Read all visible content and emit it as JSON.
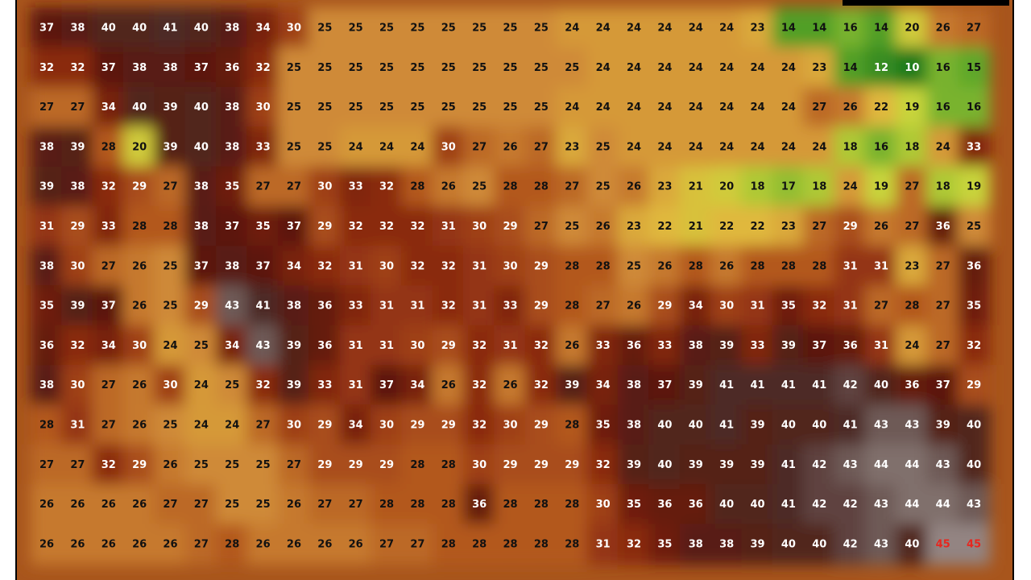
{
  "map": {
    "rows": [
      [
        37,
        38,
        40,
        40,
        41,
        40,
        38,
        34,
        30,
        25,
        25,
        25,
        25,
        25,
        25,
        25,
        25,
        24,
        24,
        24,
        24,
        24,
        24,
        23,
        14,
        14,
        16,
        14,
        20,
        26,
        27
      ],
      [
        32,
        32,
        37,
        38,
        38,
        37,
        36,
        32,
        25,
        25,
        25,
        25,
        25,
        25,
        25,
        25,
        25,
        25,
        24,
        24,
        24,
        24,
        24,
        24,
        24,
        23,
        14,
        12,
        10,
        16,
        15
      ],
      [
        27,
        27,
        34,
        40,
        39,
        40,
        38,
        30,
        25,
        25,
        25,
        25,
        25,
        25,
        25,
        25,
        25,
        24,
        24,
        24,
        24,
        24,
        24,
        24,
        24,
        27,
        26,
        22,
        19,
        16,
        16
      ],
      [
        38,
        39,
        28,
        20,
        39,
        40,
        38,
        33,
        25,
        25,
        24,
        24,
        24,
        30,
        27,
        26,
        27,
        23,
        25,
        24,
        24,
        24,
        24,
        24,
        24,
        24,
        18,
        16,
        18,
        24,
        33
      ],
      [
        39,
        38,
        32,
        29,
        27,
        38,
        35,
        27,
        27,
        30,
        33,
        32,
        28,
        26,
        25,
        28,
        28,
        27,
        25,
        26,
        23,
        21,
        20,
        18,
        17,
        18,
        24,
        19,
        27,
        18,
        19
      ],
      [
        31,
        29,
        33,
        28,
        28,
        38,
        37,
        35,
        37,
        29,
        32,
        32,
        32,
        31,
        30,
        29,
        27,
        25,
        26,
        23,
        22,
        21,
        22,
        22,
        23,
        27,
        29,
        26,
        27,
        36,
        25
      ],
      [
        38,
        30,
        27,
        26,
        25,
        37,
        38,
        37,
        34,
        32,
        31,
        30,
        32,
        32,
        31,
        30,
        29,
        28,
        28,
        25,
        26,
        28,
        26,
        28,
        28,
        28,
        31,
        31,
        23,
        27,
        36
      ],
      [
        35,
        39,
        37,
        26,
        25,
        29,
        43,
        41,
        38,
        36,
        33,
        31,
        31,
        32,
        31,
        33,
        29,
        28,
        27,
        26,
        29,
        34,
        30,
        31,
        35,
        32,
        31,
        27,
        28,
        27,
        35
      ],
      [
        36,
        32,
        34,
        30,
        24,
        25,
        34,
        43,
        39,
        36,
        31,
        31,
        30,
        29,
        32,
        31,
        32,
        26,
        33,
        36,
        33,
        38,
        39,
        33,
        39,
        37,
        36,
        31,
        24,
        27,
        32
      ],
      [
        38,
        30,
        27,
        26,
        30,
        24,
        25,
        32,
        39,
        33,
        31,
        37,
        34,
        26,
        32,
        26,
        32,
        39,
        34,
        38,
        37,
        39,
        41,
        41,
        41,
        41,
        42,
        40,
        36,
        37,
        29
      ],
      [
        28,
        31,
        27,
        26,
        25,
        24,
        24,
        27,
        30,
        29,
        34,
        30,
        29,
        29,
        32,
        30,
        29,
        28,
        35,
        38,
        40,
        40,
        41,
        39,
        40,
        40,
        41,
        43,
        43,
        39,
        40
      ],
      [
        27,
        27,
        32,
        29,
        26,
        25,
        25,
        25,
        27,
        29,
        29,
        29,
        28,
        28,
        30,
        29,
        29,
        29,
        32,
        39,
        40,
        39,
        39,
        39,
        41,
        42,
        43,
        44,
        44,
        43,
        40
      ],
      [
        26,
        26,
        26,
        26,
        27,
        27,
        25,
        25,
        26,
        27,
        27,
        28,
        28,
        28,
        36,
        28,
        28,
        28,
        30,
        35,
        36,
        36,
        40,
        40,
        41,
        42,
        42,
        43,
        44,
        44,
        43
      ],
      [
        26,
        26,
        26,
        26,
        26,
        27,
        28,
        26,
        26,
        26,
        26,
        27,
        27,
        28,
        28,
        28,
        28,
        28,
        31,
        32,
        35,
        38,
        38,
        39,
        40,
        40,
        42,
        43,
        40,
        45,
        45
      ]
    ]
  }
}
